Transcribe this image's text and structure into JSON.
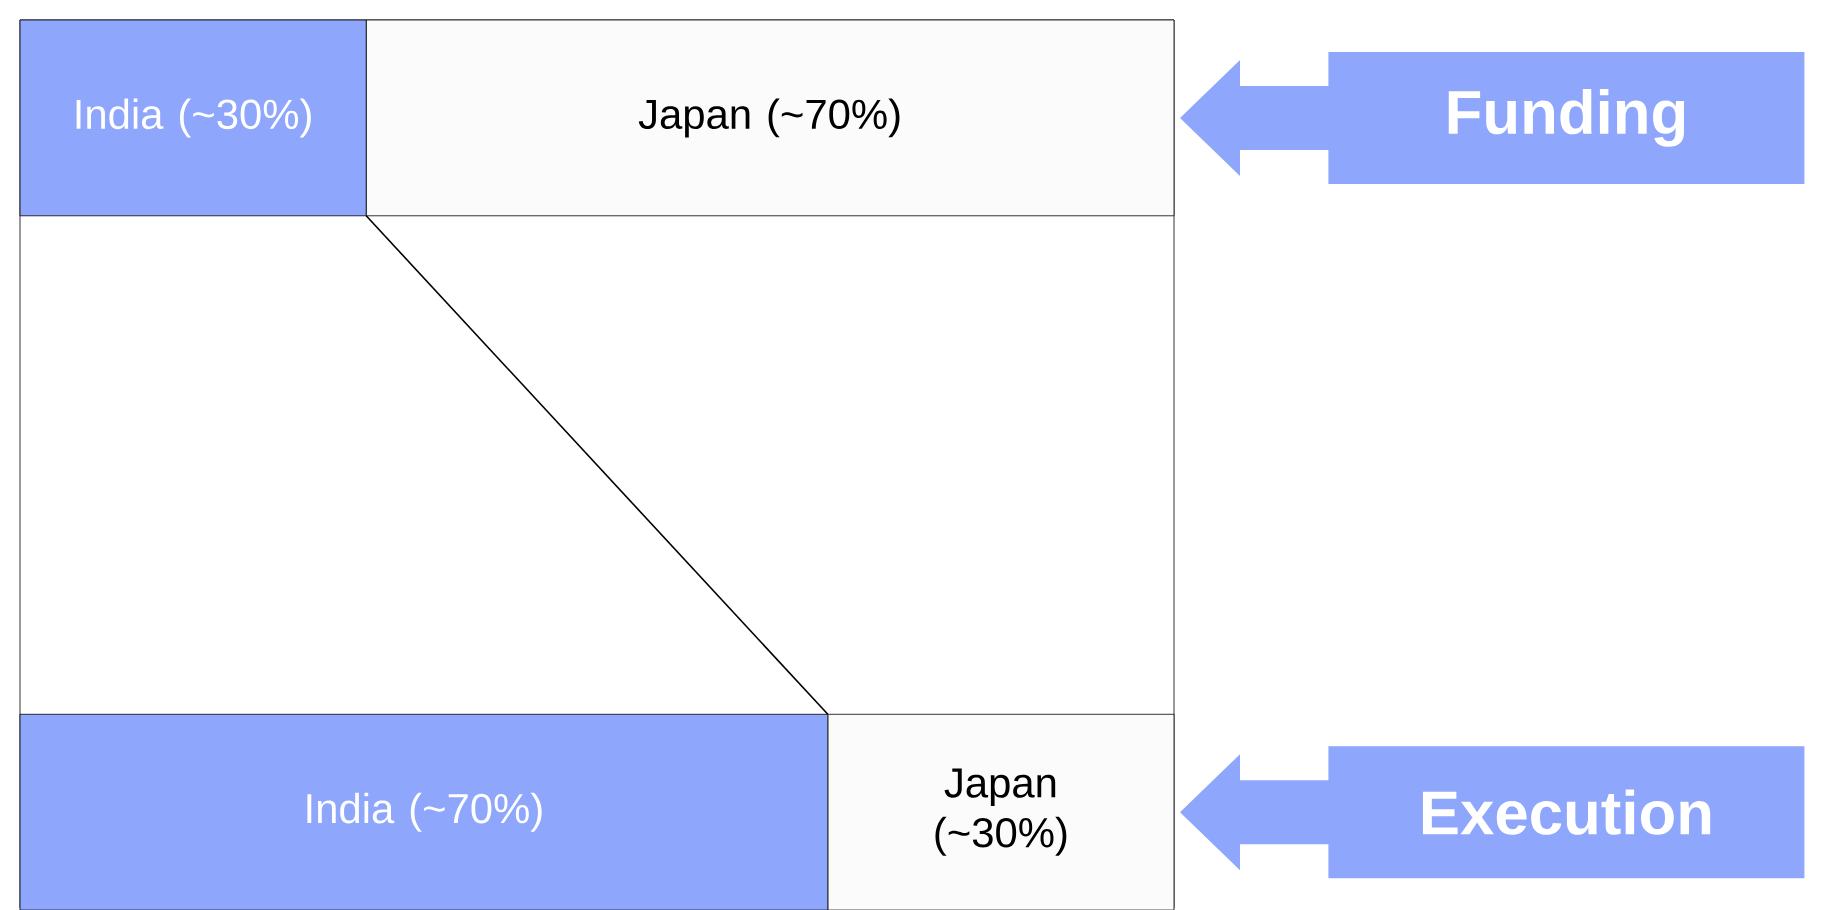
{
  "chart_data": {
    "type": "bar",
    "orientation": "horizontal",
    "stacked": true,
    "tick_labels": false,
    "xlim": [
      0,
      100
    ],
    "categories": [
      "Funding",
      "Execution"
    ],
    "series": [
      {
        "color": "#8ea6fb",
        "values": [
          30,
          70
        ],
        "value_labels": [
          "India (~30%)",
          "India (~70%)"
        ]
      },
      {
        "color": "#fbfbfb",
        "values": [
          70,
          30
        ],
        "value_labels": [
          "Japan (~70%)",
          "Japan (~30%)"
        ]
      }
    ]
  }
}
